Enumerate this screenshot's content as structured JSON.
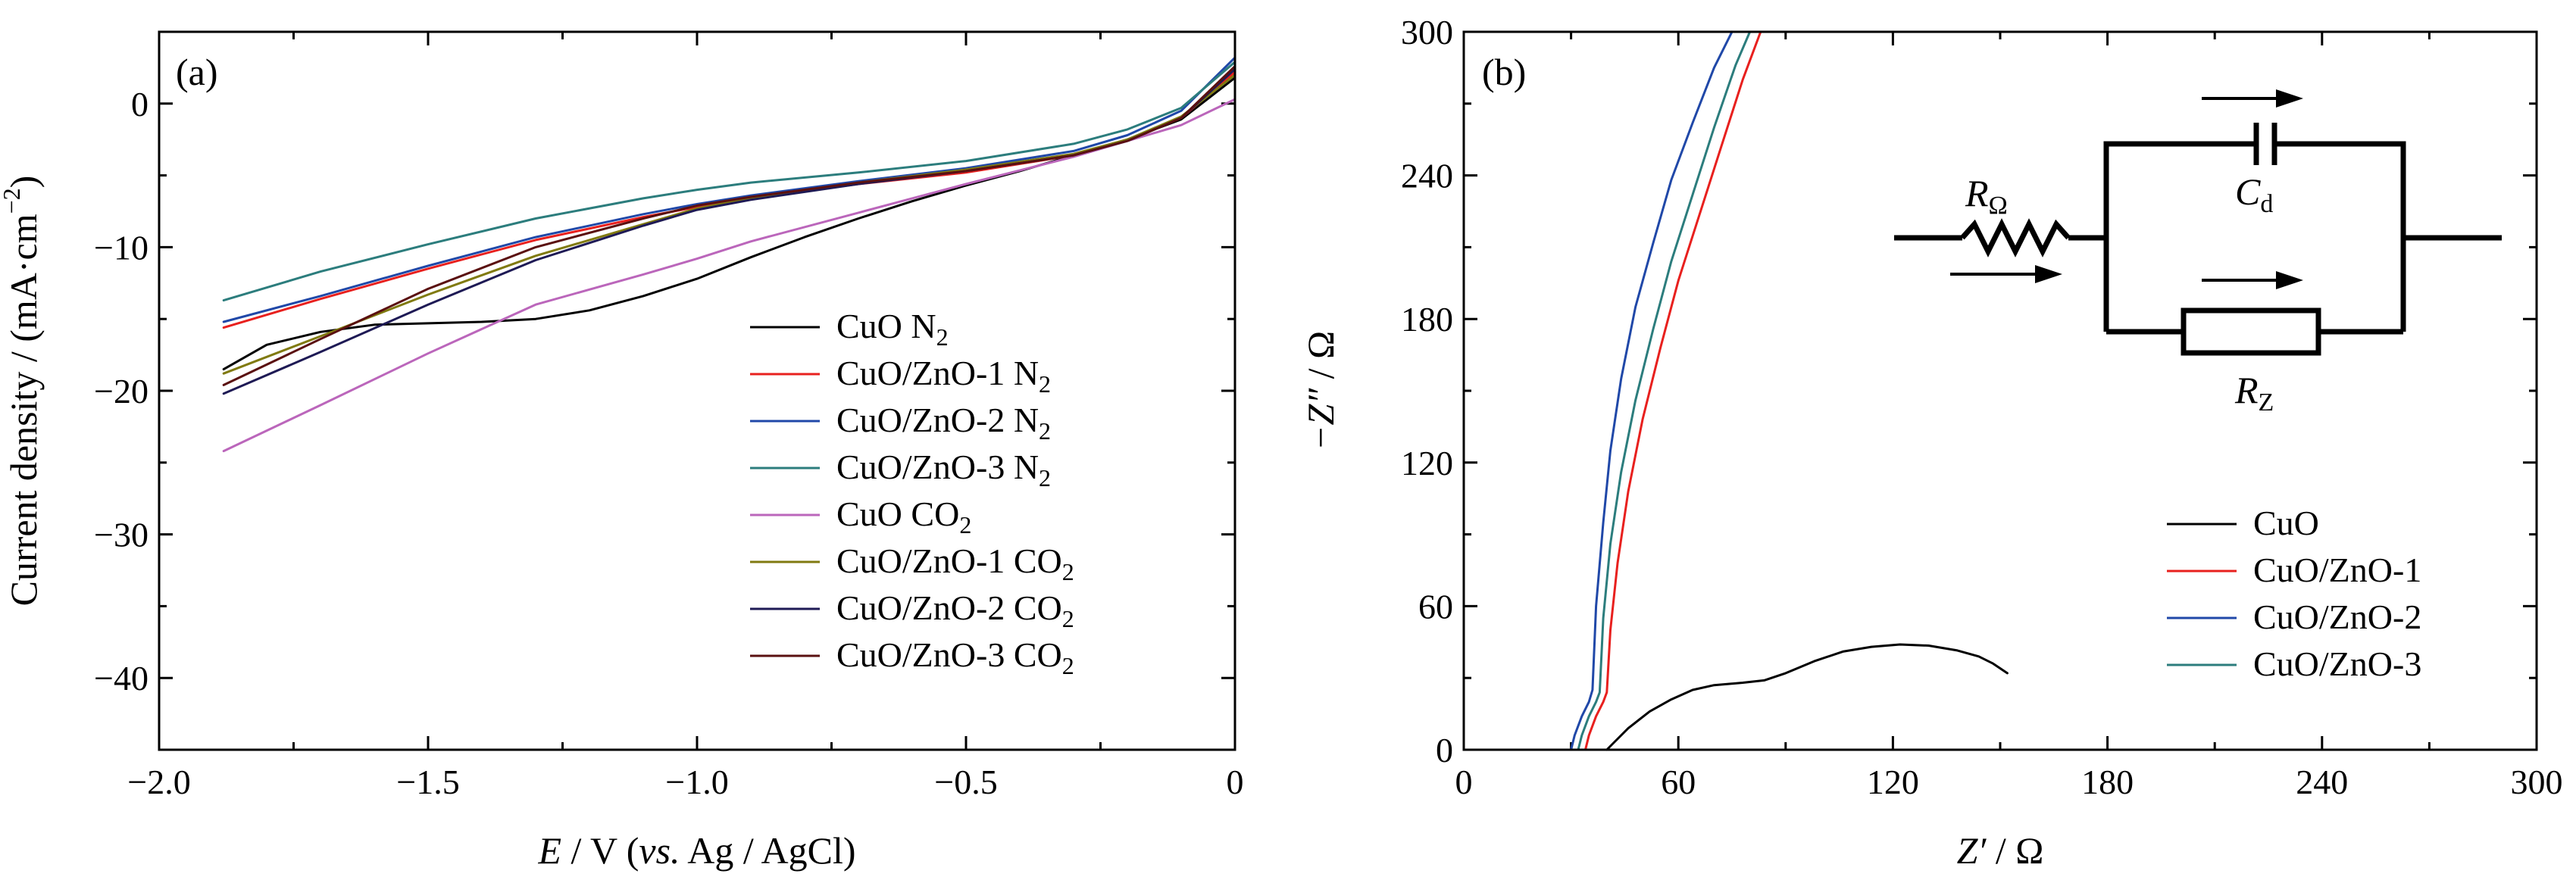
{
  "colors": {
    "CuO N2": "#000000",
    "CuO/ZnO-1 N2": "#e8201e",
    "CuO/ZnO-2 N2": "#2048a8",
    "CuO/ZnO-3 N2": "#2c7d7d",
    "CuO CO2": "#bb66bb",
    "CuO/ZnO-1 CO2": "#807a10",
    "CuO/ZnO-2 CO2": "#1e1a55",
    "CuO/ZnO-3 CO2": "#5a1010",
    "CuO": "#000000",
    "CuO/ZnO-1": "#e8201e",
    "CuO/ZnO-2": "#2048a8",
    "CuO/ZnO-3": "#2c7d7d"
  },
  "chart_data": [
    {
      "type": "line",
      "panel": "(a)",
      "xlabel": {
        "italic": "E",
        "rest": " / V (",
        "italic2": "vs.",
        "rest2": " Ag / AgCl)"
      },
      "ylabel": {
        "main": "Current density / (mA·cm",
        "sup": "−2",
        "close": ")"
      },
      "xlim": [
        -2.0,
        0
      ],
      "ylim": [
        -45,
        5
      ],
      "xticks": [
        -2.0,
        -1.5,
        -1.0,
        -0.5,
        0
      ],
      "xtick_labels": [
        "−2.0",
        "−1.5",
        "−1.0",
        "−0.5",
        "0"
      ],
      "yticks": [
        0,
        -10,
        -20,
        -30,
        -40
      ],
      "ytick_labels": [
        "0",
        "−10",
        "−20",
        "−30",
        "−40"
      ],
      "legend_position": "bottom-right",
      "series": [
        {
          "name": "CuO N",
          "sub": "2",
          "key": "CuO N2",
          "x": [
            -1.88,
            -1.8,
            -1.7,
            -1.6,
            -1.5,
            -1.4,
            -1.3,
            -1.2,
            -1.1,
            -1.0,
            -0.9,
            -0.8,
            -0.7,
            -0.6,
            -0.5,
            -0.4,
            -0.3,
            -0.2,
            -0.1,
            0
          ],
          "y": [
            -18.5,
            -16.8,
            -15.9,
            -15.4,
            -15.3,
            -15.2,
            -15.0,
            -14.4,
            -13.4,
            -12.2,
            -10.7,
            -9.3,
            -8.0,
            -6.8,
            -5.7,
            -4.7,
            -3.6,
            -2.5,
            -1.1,
            1.8
          ]
        },
        {
          "name": "CuO/ZnO-1 N",
          "sub": "2",
          "key": "CuO/ZnO-1 N2",
          "x": [
            -1.88,
            -1.7,
            -1.5,
            -1.3,
            -1.1,
            -1.0,
            -0.9,
            -0.7,
            -0.5,
            -0.3,
            -0.2,
            -0.1,
            0
          ],
          "y": [
            -15.6,
            -13.6,
            -11.5,
            -9.5,
            -7.9,
            -7.2,
            -6.6,
            -5.6,
            -4.8,
            -3.6,
            -2.6,
            -1.0,
            2.2
          ]
        },
        {
          "name": "CuO/ZnO-2 N",
          "sub": "2",
          "key": "CuO/ZnO-2 N2",
          "x": [
            -1.88,
            -1.7,
            -1.5,
            -1.3,
            -1.1,
            -1.0,
            -0.9,
            -0.7,
            -0.5,
            -0.3,
            -0.2,
            -0.1,
            0
          ],
          "y": [
            -15.2,
            -13.4,
            -11.3,
            -9.3,
            -7.7,
            -7.0,
            -6.4,
            -5.4,
            -4.5,
            -3.3,
            -2.2,
            -0.5,
            3.2
          ]
        },
        {
          "name": "CuO/ZnO-3 N",
          "sub": "2",
          "key": "CuO/ZnO-3 N2",
          "x": [
            -1.88,
            -1.7,
            -1.5,
            -1.3,
            -1.1,
            -1.0,
            -0.9,
            -0.7,
            -0.5,
            -0.3,
            -0.2,
            -0.1,
            0
          ],
          "y": [
            -13.7,
            -11.7,
            -9.8,
            -8.0,
            -6.6,
            -6.0,
            -5.5,
            -4.8,
            -4.0,
            -2.8,
            -1.8,
            -0.3,
            2.9
          ]
        },
        {
          "name": "CuO CO",
          "sub": "2",
          "key": "CuO CO2",
          "x": [
            -1.88,
            -1.7,
            -1.5,
            -1.3,
            -1.1,
            -1.0,
            -0.9,
            -0.7,
            -0.5,
            -0.3,
            -0.1,
            0
          ],
          "y": [
            -24.2,
            -21.0,
            -17.4,
            -14.0,
            -11.9,
            -10.8,
            -9.6,
            -7.6,
            -5.6,
            -3.7,
            -1.5,
            0.3
          ]
        },
        {
          "name": "CuO/ZnO-1 CO",
          "sub": "2",
          "key": "CuO/ZnO-1 CO2",
          "x": [
            -1.88,
            -1.7,
            -1.5,
            -1.3,
            -1.1,
            -1.0,
            -0.9,
            -0.7,
            -0.5,
            -0.3,
            -0.2,
            -0.1,
            0
          ],
          "y": [
            -18.8,
            -16.2,
            -13.3,
            -10.6,
            -8.4,
            -7.3,
            -6.6,
            -5.5,
            -4.6,
            -3.5,
            -2.5,
            -0.9,
            2.0
          ]
        },
        {
          "name": "CuO/ZnO-2 CO",
          "sub": "2",
          "key": "CuO/ZnO-2 CO2",
          "x": [
            -1.88,
            -1.7,
            -1.5,
            -1.3,
            -1.1,
            -1.0,
            -0.9,
            -0.7,
            -0.5,
            -0.3,
            -0.2,
            -0.1,
            0
          ],
          "y": [
            -20.2,
            -17.3,
            -14.0,
            -10.9,
            -8.5,
            -7.4,
            -6.7,
            -5.6,
            -4.7,
            -3.6,
            -2.6,
            -1.0,
            2.4
          ]
        },
        {
          "name": "CuO/ZnO-3 CO",
          "sub": "2",
          "key": "CuO/ZnO-3 CO2",
          "x": [
            -1.88,
            -1.7,
            -1.5,
            -1.3,
            -1.1,
            -1.0,
            -0.9,
            -0.7,
            -0.5,
            -0.3,
            -0.2,
            -0.1,
            0
          ],
          "y": [
            -19.6,
            -16.4,
            -12.9,
            -10.0,
            -8.0,
            -7.1,
            -6.5,
            -5.5,
            -4.7,
            -3.6,
            -2.6,
            -1.0,
            2.6
          ]
        }
      ]
    },
    {
      "type": "line",
      "panel": "(b)",
      "xlabel": {
        "italic": "Z′",
        "rest": " / Ω"
      },
      "ylabel": {
        "italic": "−Z″",
        "rest": " / Ω"
      },
      "xlim": [
        0,
        300
      ],
      "ylim": [
        0,
        300
      ],
      "xticks": [
        0,
        60,
        120,
        180,
        240,
        300
      ],
      "xtick_labels": [
        "0",
        "60",
        "120",
        "180",
        "240",
        "300"
      ],
      "yticks": [
        0,
        60,
        120,
        180,
        240,
        300
      ],
      "ytick_labels": [
        "0",
        "60",
        "120",
        "180",
        "240",
        "300"
      ],
      "legend_position": "bottom-right",
      "series": [
        {
          "name": "CuO",
          "key": "CuO",
          "x": [
            40,
            42,
            46,
            52,
            58,
            64,
            70,
            78,
            84,
            90,
            98,
            106,
            114,
            122,
            130,
            138,
            144,
            148,
            152
          ],
          "y": [
            0,
            3,
            9,
            16,
            21,
            25,
            27,
            28,
            29,
            32,
            37,
            41,
            43,
            44,
            43.5,
            41.5,
            39,
            36,
            32
          ]
        },
        {
          "name": "CuO/ZnO-1",
          "key": "CuO/ZnO-1",
          "x": [
            34,
            35,
            37,
            39,
            40,
            41,
            43,
            46,
            50,
            55,
            60,
            66,
            72,
            78,
            83
          ],
          "y": [
            0,
            6,
            14,
            20,
            24,
            50,
            78,
            108,
            138,
            168,
            196,
            224,
            252,
            280,
            300
          ]
        },
        {
          "name": "CuO/ZnO-2",
          "key": "CuO/ZnO-2",
          "x": [
            30,
            31,
            33,
            35,
            36,
            37,
            39,
            41,
            44,
            48,
            53,
            58,
            64,
            70,
            75
          ],
          "y": [
            0,
            6,
            14,
            20,
            25,
            60,
            95,
            125,
            155,
            185,
            212,
            238,
            262,
            285,
            300
          ]
        },
        {
          "name": "CuO/ZnO-3",
          "key": "CuO/ZnO-3",
          "x": [
            32,
            33,
            35,
            37,
            38,
            39,
            41,
            44,
            48,
            53,
            58,
            64,
            70,
            76,
            80
          ],
          "y": [
            0,
            6,
            14,
            20,
            24,
            55,
            86,
            116,
            146,
            176,
            204,
            232,
            260,
            286,
            300
          ]
        }
      ],
      "inset_circuit": {
        "r_omega": {
          "main": "R",
          "sub": "Ω"
        },
        "c_d": {
          "main": "C",
          "sub": "d"
        },
        "r_z": {
          "main": "R",
          "sub": "Z"
        }
      }
    }
  ]
}
